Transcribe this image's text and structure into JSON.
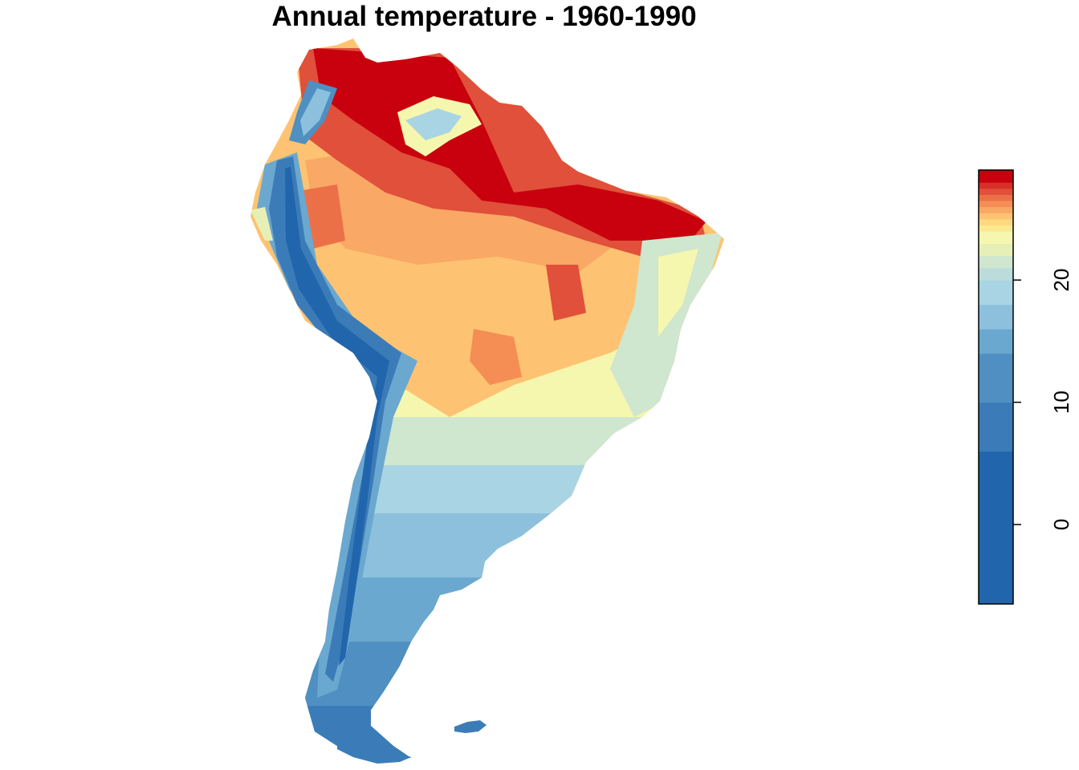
{
  "title": "Annual temperature - 1960-1990",
  "legend": {
    "ticks": [
      {
        "value": 0,
        "label": "0"
      },
      {
        "value": 10,
        "label": "10"
      },
      {
        "value": 20,
        "label": "20"
      }
    ],
    "min": -6.5,
    "max": 29,
    "bins": [
      {
        "from": -6.5,
        "to": 6,
        "color": "#2166ac"
      },
      {
        "from": 6,
        "to": 10,
        "color": "#3b7cb8"
      },
      {
        "from": 10,
        "to": 14,
        "color": "#4f8fc1"
      },
      {
        "from": 14,
        "to": 16,
        "color": "#6aa8d0"
      },
      {
        "from": 16,
        "to": 18,
        "color": "#8cc0dd"
      },
      {
        "from": 18,
        "to": 20,
        "color": "#a9d4e3"
      },
      {
        "from": 20,
        "to": 21,
        "color": "#bcdcdc"
      },
      {
        "from": 21,
        "to": 22,
        "color": "#cfe6cf"
      },
      {
        "from": 22,
        "to": 23,
        "color": "#e6f0b6"
      },
      {
        "from": 23,
        "to": 24,
        "color": "#f6f7ae"
      },
      {
        "from": 24,
        "to": 24.5,
        "color": "#fbe98f"
      },
      {
        "from": 24.5,
        "to": 25,
        "color": "#fcd97f"
      },
      {
        "from": 25,
        "to": 25.5,
        "color": "#fdc372"
      },
      {
        "from": 25.5,
        "to": 26,
        "color": "#f9a865"
      },
      {
        "from": 26,
        "to": 26.5,
        "color": "#f48e55"
      },
      {
        "from": 26.5,
        "to": 27,
        "color": "#ec7047"
      },
      {
        "from": 27,
        "to": 27.5,
        "color": "#e0503a"
      },
      {
        "from": 27.5,
        "to": 28,
        "color": "#d73027"
      },
      {
        "from": 28,
        "to": 29,
        "color": "#c9000e"
      }
    ]
  },
  "colors": {
    "very_hot": "#c9000e",
    "hot": "#e0503a",
    "warm": "#f48e55",
    "mild_warm": "#fdc372",
    "mild": "#f6f7ae",
    "temperate": "#cfe6cf",
    "cool": "#a9d4e3",
    "cold": "#6aa8d0",
    "colder": "#4f8fc1",
    "coldest": "#2166ac"
  }
}
